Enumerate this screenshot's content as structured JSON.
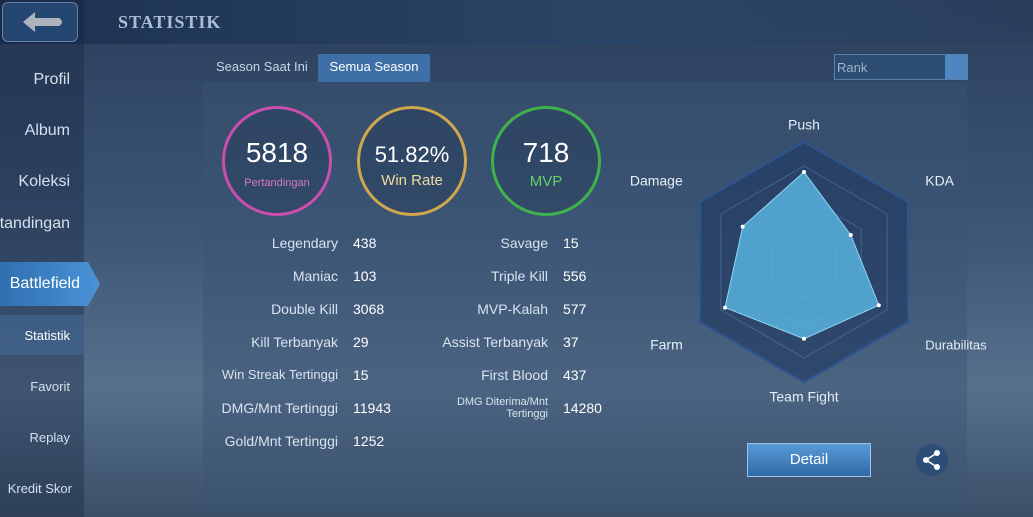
{
  "header": {
    "title": "STATISTIK"
  },
  "sidebar": {
    "items": [
      "Profil",
      "Album",
      "Koleksi",
      "Hasil Pertandingan",
      "Battlefield"
    ],
    "subitems": [
      "Statistik",
      "Favorit",
      "Replay",
      "Kredit Skor"
    ]
  },
  "tabs": [
    "Season Saat Ini",
    "Semua Season"
  ],
  "filter": "Rank",
  "summary": [
    {
      "value": 5818,
      "label": "Pertandingan"
    },
    {
      "value": "51.82%",
      "label": "Win Rate"
    },
    {
      "value": 718,
      "label": "MVP"
    }
  ],
  "stats": {
    "left": [
      {
        "label": "Legendary",
        "value": 438
      },
      {
        "label": "Maniac",
        "value": 103
      },
      {
        "label": "Double Kill",
        "value": 3068
      },
      {
        "label": "Kill Terbanyak",
        "value": 29
      },
      {
        "label": "Win Streak Tertinggi",
        "value": 15
      },
      {
        "label": "DMG/Mnt Tertinggi",
        "value": 11943
      },
      {
        "label": "Gold/Mnt Tertinggi",
        "value": 1252
      }
    ],
    "right": [
      {
        "label": "Savage",
        "value": 15
      },
      {
        "label": "Triple Kill",
        "value": 556
      },
      {
        "label": "MVP-Kalah",
        "value": 577
      },
      {
        "label": "Assist Terbanyak",
        "value": 37
      },
      {
        "label": "First Blood",
        "value": 437
      },
      {
        "label": "DMG Diterima/Mnt Tertinggi",
        "value": 14280
      }
    ]
  },
  "radar": {
    "rlim": [
      0,
      100
    ],
    "axes": [
      {
        "label": "Push",
        "value": 75
      },
      {
        "label": "KDA",
        "value": 45
      },
      {
        "label": "Durabilitas",
        "value": 72
      },
      {
        "label": "Team Fight",
        "value": 64
      },
      {
        "label": "Farm",
        "value": 76
      },
      {
        "label": "Damage",
        "value": 59
      }
    ]
  },
  "button": "Detail"
}
